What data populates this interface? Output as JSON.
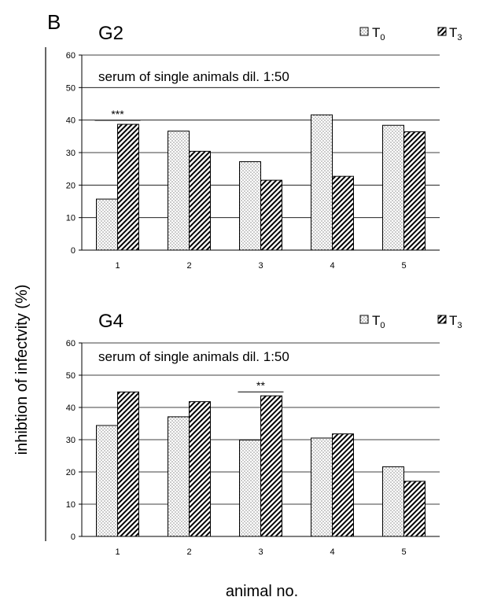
{
  "figure": {
    "panel_letter": "B",
    "ylabel": "inhibtion of infectvity (%)",
    "xlabel": "animal no."
  },
  "legend": {
    "t0": {
      "base": "T",
      "sub": "0"
    },
    "t3": {
      "base": "T",
      "sub": "3"
    }
  },
  "colors": {
    "bar_stroke": "#000000",
    "grid": "#000000",
    "fill": "#ffffff"
  },
  "chart_data": [
    {
      "type": "bar",
      "title": "G2",
      "annotation": "serum of single animals dil. 1:50",
      "categories": [
        "1",
        "2",
        "3",
        "4",
        "5"
      ],
      "series": [
        {
          "name": "T0",
          "pattern": "dotted",
          "values": [
            15.7,
            36.6,
            27.2,
            41.6,
            38.4
          ]
        },
        {
          "name": "T3",
          "pattern": "hatched",
          "values": [
            38.7,
            30.4,
            21.5,
            22.7,
            36.4
          ]
        }
      ],
      "ylim": [
        0,
        60
      ],
      "yticks": [
        0,
        10,
        20,
        30,
        40,
        50,
        60
      ],
      "grid": true,
      "legend_position": "top-right",
      "significance": [
        {
          "category": "1",
          "label": "***"
        }
      ]
    },
    {
      "type": "bar",
      "title": "G4",
      "annotation": "serum of single animals dil. 1:50",
      "categories": [
        "1",
        "2",
        "3",
        "4",
        "5"
      ],
      "series": [
        {
          "name": "T0",
          "pattern": "dotted",
          "values": [
            34.4,
            37.1,
            29.9,
            30.5,
            21.6
          ]
        },
        {
          "name": "T3",
          "pattern": "hatched",
          "values": [
            44.8,
            41.8,
            43.6,
            31.8,
            17.1
          ]
        }
      ],
      "ylim": [
        0,
        60
      ],
      "yticks": [
        0,
        10,
        20,
        30,
        40,
        50,
        60
      ],
      "grid": true,
      "legend_position": "top-right",
      "significance": [
        {
          "category": "3",
          "label": "**"
        }
      ]
    }
  ]
}
